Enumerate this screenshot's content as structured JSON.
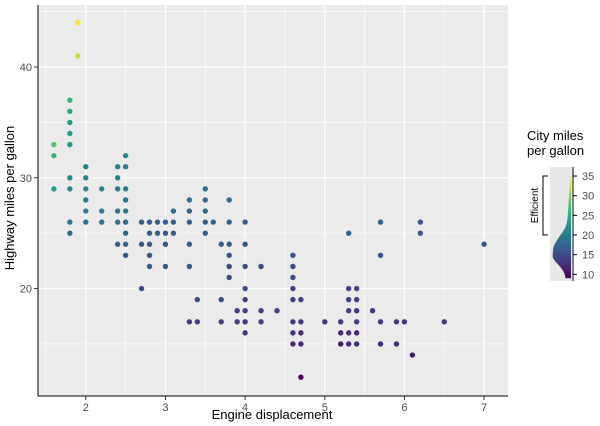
{
  "chart_data": {
    "type": "scatter",
    "xlabel": "Engine displacement",
    "ylabel": "Highway miles per gallon",
    "xlim": [
      1.4,
      7.3
    ],
    "ylim": [
      10.3,
      45.6
    ],
    "x_ticks": [
      2,
      3,
      4,
      5,
      6,
      7
    ],
    "y_ticks": [
      20,
      30,
      40
    ],
    "grid": true,
    "color_by": "cty",
    "colors": {
      "panel": "#ebebeb",
      "grid": "#ffffff",
      "axis": "#000000",
      "background": "#ffffff"
    },
    "colormap": [
      "#440154",
      "#46327e",
      "#365c8d",
      "#277f8e",
      "#1fa187",
      "#4ac16d",
      "#a0da39",
      "#fde725"
    ],
    "legend": {
      "title": [
        "City miles",
        "per gallon"
      ],
      "ticks": [
        10,
        15,
        20,
        25,
        30,
        35
      ],
      "range": [
        8.3,
        37.3
      ],
      "data_range": [
        9,
        35
      ],
      "bracket_label": "Efficient",
      "bracket_range": [
        20,
        35
      ],
      "position": "right"
    },
    "points": [
      [
        1.6,
        33,
        28
      ],
      [
        1.6,
        32,
        26
      ],
      [
        1.6,
        29,
        24
      ],
      [
        1.8,
        37,
        26
      ],
      [
        1.8,
        36,
        25
      ],
      [
        1.8,
        35,
        24
      ],
      [
        1.8,
        34,
        24
      ],
      [
        1.8,
        33,
        23
      ],
      [
        1.8,
        30,
        21
      ],
      [
        1.8,
        29,
        21
      ],
      [
        1.8,
        26,
        19
      ],
      [
        1.8,
        25,
        18
      ],
      [
        1.9,
        44,
        35
      ],
      [
        1.9,
        41,
        33
      ],
      [
        2.0,
        31,
        21
      ],
      [
        2.0,
        30,
        21
      ],
      [
        2.0,
        29,
        21
      ],
      [
        2.0,
        28,
        20
      ],
      [
        2.0,
        27,
        20
      ],
      [
        2.0,
        26,
        19
      ],
      [
        2.2,
        29,
        21
      ],
      [
        2.2,
        27,
        20
      ],
      [
        2.2,
        26,
        19
      ],
      [
        2.4,
        31,
        21
      ],
      [
        2.4,
        30,
        21
      ],
      [
        2.4,
        29,
        20
      ],
      [
        2.4,
        27,
        19
      ],
      [
        2.4,
        26,
        19
      ],
      [
        2.4,
        24,
        17
      ],
      [
        2.5,
        32,
        21
      ],
      [
        2.5,
        31,
        20
      ],
      [
        2.5,
        29,
        20
      ],
      [
        2.5,
        28,
        19
      ],
      [
        2.5,
        27,
        19
      ],
      [
        2.5,
        26,
        18
      ],
      [
        2.5,
        25,
        18
      ],
      [
        2.5,
        24,
        17
      ],
      [
        2.5,
        23,
        16
      ],
      [
        2.7,
        26,
        17
      ],
      [
        2.7,
        24,
        16
      ],
      [
        2.7,
        20,
        15
      ],
      [
        2.8,
        26,
        17
      ],
      [
        2.8,
        25,
        17
      ],
      [
        2.8,
        24,
        16
      ],
      [
        2.8,
        23,
        16
      ],
      [
        2.8,
        22,
        16
      ],
      [
        2.9,
        26,
        17
      ],
      [
        2.9,
        25,
        17
      ],
      [
        3.0,
        26,
        17
      ],
      [
        3.0,
        25,
        16
      ],
      [
        3.0,
        24,
        16
      ],
      [
        3.0,
        22,
        16
      ],
      [
        3.1,
        27,
        18
      ],
      [
        3.1,
        26,
        17
      ],
      [
        3.1,
        25,
        17
      ],
      [
        3.3,
        28,
        18
      ],
      [
        3.3,
        27,
        17
      ],
      [
        3.3,
        26,
        17
      ],
      [
        3.3,
        24,
        16
      ],
      [
        3.3,
        22,
        16
      ],
      [
        3.3,
        17,
        13
      ],
      [
        3.4,
        19,
        15
      ],
      [
        3.4,
        17,
        14
      ],
      [
        3.5,
        29,
        19
      ],
      [
        3.5,
        28,
        18
      ],
      [
        3.5,
        27,
        18
      ],
      [
        3.5,
        26,
        17
      ],
      [
        3.5,
        25,
        17
      ],
      [
        3.6,
        26,
        17
      ],
      [
        3.7,
        24,
        16
      ],
      [
        3.7,
        19,
        15
      ],
      [
        3.7,
        17,
        14
      ],
      [
        3.8,
        28,
        18
      ],
      [
        3.8,
        26,
        17
      ],
      [
        3.8,
        24,
        16
      ],
      [
        3.8,
        23,
        16
      ],
      [
        3.8,
        22,
        15
      ],
      [
        3.8,
        21,
        15
      ],
      [
        3.9,
        18,
        14
      ],
      [
        3.9,
        17,
        14
      ],
      [
        4.0,
        26,
        16
      ],
      [
        4.0,
        24,
        16
      ],
      [
        4.0,
        22,
        15
      ],
      [
        4.0,
        20,
        15
      ],
      [
        4.0,
        19,
        14
      ],
      [
        4.0,
        18,
        14
      ],
      [
        4.0,
        17,
        13
      ],
      [
        4.0,
        16,
        13
      ],
      [
        4.2,
        22,
        15
      ],
      [
        4.2,
        18,
        14
      ],
      [
        4.2,
        17,
        14
      ],
      [
        4.4,
        18,
        14
      ],
      [
        4.6,
        23,
        16
      ],
      [
        4.6,
        22,
        15
      ],
      [
        4.6,
        21,
        15
      ],
      [
        4.6,
        20,
        14
      ],
      [
        4.6,
        19,
        14
      ],
      [
        4.6,
        17,
        13
      ],
      [
        4.6,
        16,
        13
      ],
      [
        4.6,
        15,
        12
      ],
      [
        4.7,
        19,
        14
      ],
      [
        4.7,
        17,
        13
      ],
      [
        4.7,
        16,
        12
      ],
      [
        4.7,
        15,
        12
      ],
      [
        4.7,
        12,
        9
      ],
      [
        5.0,
        17,
        13
      ],
      [
        5.2,
        17,
        13
      ],
      [
        5.2,
        16,
        12
      ],
      [
        5.2,
        15,
        11
      ],
      [
        5.3,
        25,
        17
      ],
      [
        5.3,
        20,
        14
      ],
      [
        5.3,
        19,
        14
      ],
      [
        5.3,
        18,
        14
      ],
      [
        5.3,
        16,
        13
      ],
      [
        5.3,
        15,
        12
      ],
      [
        5.4,
        20,
        14
      ],
      [
        5.4,
        19,
        14
      ],
      [
        5.4,
        18,
        13
      ],
      [
        5.4,
        17,
        13
      ],
      [
        5.4,
        16,
        12
      ],
      [
        5.4,
        15,
        12
      ],
      [
        5.6,
        18,
        13
      ],
      [
        5.7,
        26,
        17
      ],
      [
        5.7,
        23,
        16
      ],
      [
        5.7,
        17,
        13
      ],
      [
        5.7,
        15,
        12
      ],
      [
        5.9,
        17,
        13
      ],
      [
        5.9,
        15,
        12
      ],
      [
        6.0,
        17,
        13
      ],
      [
        6.1,
        14,
        11
      ],
      [
        6.2,
        26,
        16
      ],
      [
        6.2,
        25,
        16
      ],
      [
        6.5,
        17,
        13
      ],
      [
        7.0,
        24,
        16
      ]
    ]
  }
}
